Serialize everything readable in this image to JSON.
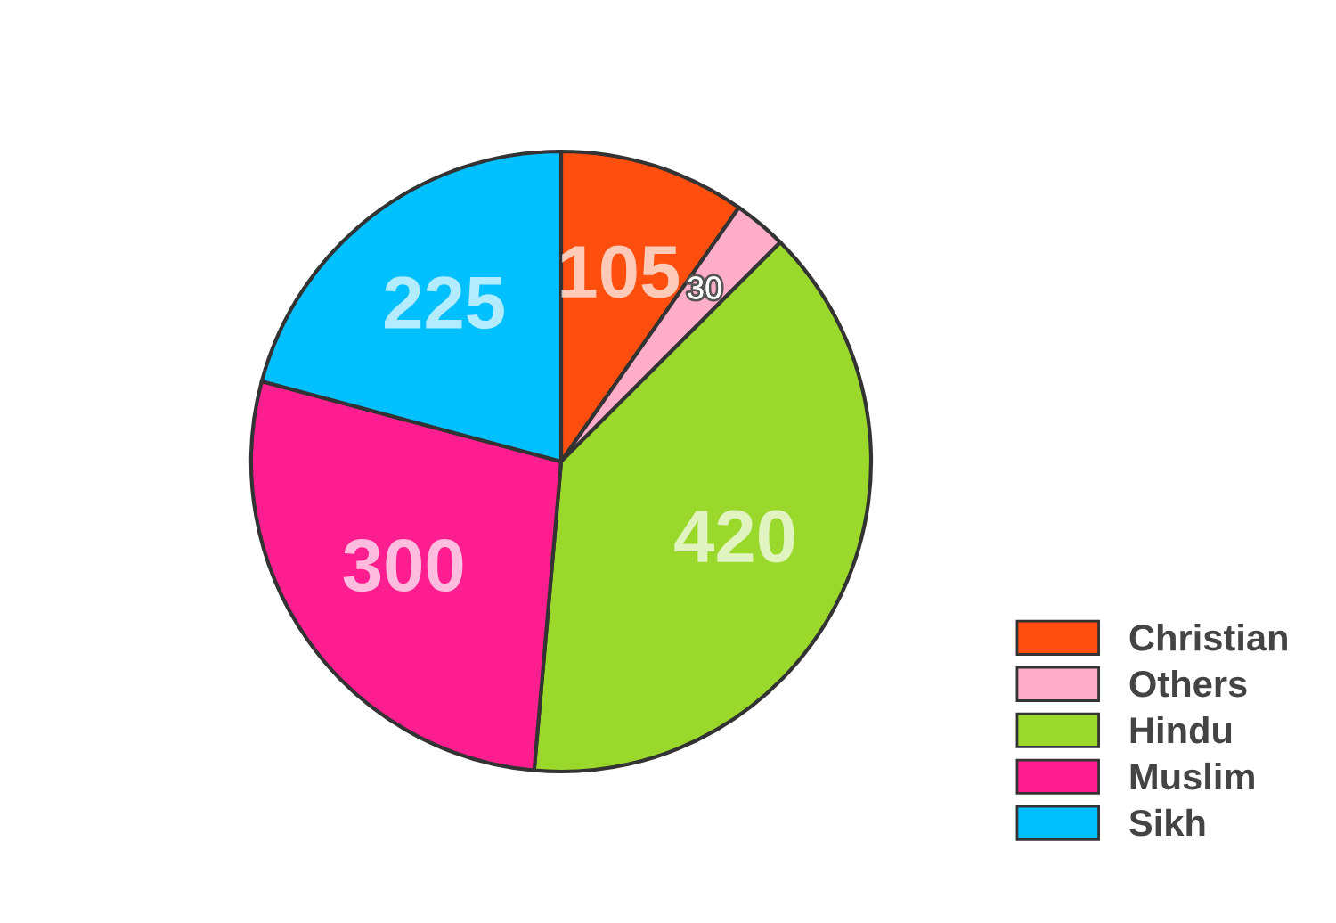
{
  "chart_data": {
    "type": "pie",
    "categories": [
      "Christian",
      "Others",
      "Hindu",
      "Muslim",
      "Sikh"
    ],
    "values": [
      105,
      30,
      420,
      300,
      225
    ],
    "colors": [
      "#ff4e0d",
      "#ffadc9",
      "#9bd82c",
      "#ff1e90",
      "#00c0ff"
    ],
    "data_labels": true,
    "legend": "bottom right"
  }
}
